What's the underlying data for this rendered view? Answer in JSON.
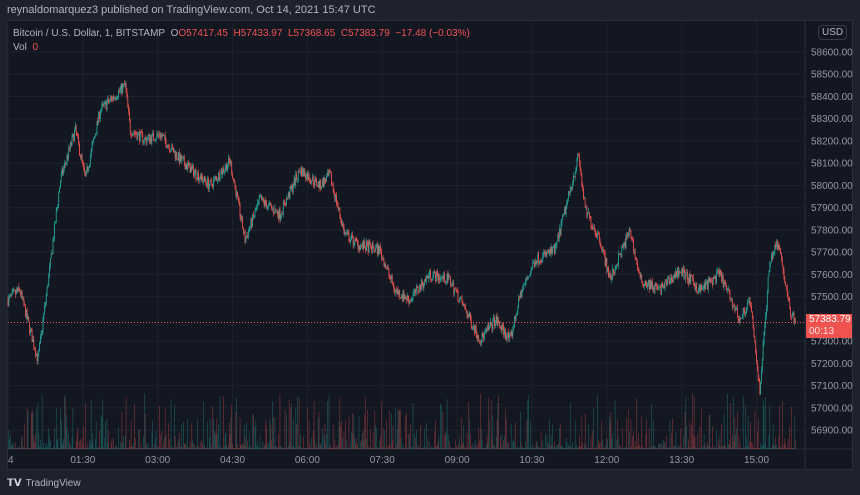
{
  "publisher_line": "reynaldomarquez3 published on TradingView.com, Oct 14, 2021 15:47 UTC",
  "legend": {
    "symbol": "Bitcoin / U.S. Dollar, 1, BITSTAMP",
    "open": "O57417.45",
    "high": "H57433.97",
    "low": "L57368.65",
    "close": "C57383.79",
    "change": "−17.48 (−0.03%)",
    "vol_label": "Vol",
    "vol_value": "0"
  },
  "currency_button": "USD",
  "last_price": {
    "value": "57383.79",
    "countdown": "00:13"
  },
  "brand": "TradingView",
  "colors": {
    "up": "#26a69a",
    "down": "#ef5350",
    "background": "#131722"
  },
  "chart_data": {
    "type": "candlestick",
    "interval": "1 minute",
    "y_ticks": [
      58600,
      58500,
      58400,
      58300,
      58200,
      58100,
      58000,
      57900,
      57800,
      57700,
      57600,
      57500,
      57300,
      57200,
      57100,
      57000,
      56900
    ],
    "y_range": [
      56850,
      58750
    ],
    "x_ticks": [
      "4",
      "01:30",
      "03:00",
      "04:30",
      "06:00",
      "07:30",
      "09:00",
      "10:30",
      "12:00",
      "13:30",
      "15:00"
    ],
    "x_range": [
      "00:00",
      "16:00"
    ],
    "grid": true,
    "approx_close_path": [
      [
        "00:00",
        57485
      ],
      [
        "00:14",
        57530
      ],
      [
        "00:36",
        57215
      ],
      [
        "00:50",
        57620
      ],
      [
        "01:03",
        58025
      ],
      [
        "01:21",
        58250
      ],
      [
        "01:33",
        58030
      ],
      [
        "01:51",
        58340
      ],
      [
        "02:21",
        58450
      ],
      [
        "02:27",
        58250
      ],
      [
        "02:45",
        58205
      ],
      [
        "03:03",
        58230
      ],
      [
        "03:27",
        58115
      ],
      [
        "04:03",
        58000
      ],
      [
        "04:27",
        58110
      ],
      [
        "04:45",
        57755
      ],
      [
        "05:03",
        57935
      ],
      [
        "05:27",
        57870
      ],
      [
        "05:51",
        58070
      ],
      [
        "06:15",
        58000
      ],
      [
        "06:27",
        58045
      ],
      [
        "06:45",
        57780
      ],
      [
        "07:03",
        57730
      ],
      [
        "07:27",
        57710
      ],
      [
        "07:45",
        57530
      ],
      [
        "08:03",
        57485
      ],
      [
        "08:27",
        57600
      ],
      [
        "08:51",
        57575
      ],
      [
        "09:10",
        57440
      ],
      [
        "09:28",
        57305
      ],
      [
        "09:46",
        57395
      ],
      [
        "10:04",
        57305
      ],
      [
        "10:16",
        57510
      ],
      [
        "10:34",
        57665
      ],
      [
        "10:58",
        57710
      ],
      [
        "11:16",
        57980
      ],
      [
        "11:26",
        58135
      ],
      [
        "11:34",
        57890
      ],
      [
        "11:52",
        57755
      ],
      [
        "12:04",
        57575
      ],
      [
        "12:28",
        57800
      ],
      [
        "12:40",
        57575
      ],
      [
        "13:04",
        57530
      ],
      [
        "13:28",
        57620
      ],
      [
        "13:52",
        57530
      ],
      [
        "14:16",
        57600
      ],
      [
        "14:40",
        57395
      ],
      [
        "14:52",
        57485
      ],
      [
        "15:04",
        57080
      ],
      [
        "15:16",
        57665
      ],
      [
        "15:26",
        57755
      ],
      [
        "15:40",
        57440
      ],
      [
        "15:47",
        57384
      ]
    ]
  }
}
